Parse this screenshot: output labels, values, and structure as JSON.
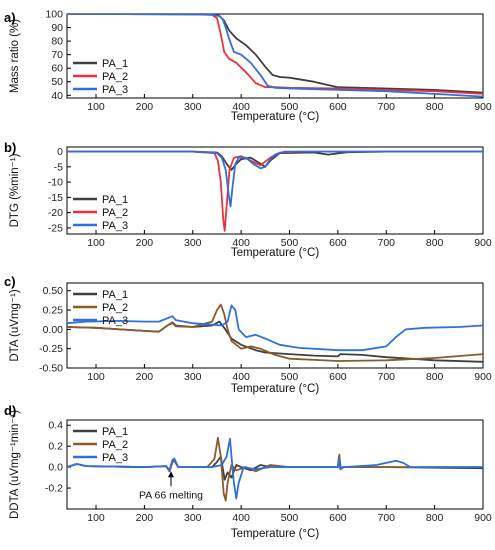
{
  "colors": {
    "PA_1": "#3f3f3f",
    "PA_2_red": "#e8333c",
    "PA_2_brown": "#8c5a2b",
    "PA_3": "#2f6fdf"
  },
  "chart_data": [
    {
      "type": "line",
      "panel": "a)",
      "xlabel": "Temperature (°C)",
      "ylabel": "Mass ratio (%)",
      "xlim": [
        40,
        900
      ],
      "ylim": [
        38,
        100
      ],
      "xticks": [
        100,
        200,
        300,
        400,
        500,
        600,
        700,
        800,
        900
      ],
      "yticks": [
        40,
        50,
        60,
        70,
        80,
        90,
        100
      ],
      "legend": "bottom-left",
      "series": [
        {
          "name": "PA_1",
          "color": "#3f3f3f",
          "x": [
            40,
            300,
            340,
            355,
            365,
            375,
            390,
            410,
            430,
            450,
            465,
            480,
            500,
            550,
            600,
            700,
            800,
            900
          ],
          "y": [
            100,
            99.8,
            99.5,
            98.5,
            95,
            88,
            82,
            77,
            70,
            61,
            55,
            53.5,
            53,
            50,
            46,
            45,
            44,
            42
          ]
        },
        {
          "name": "PA_2",
          "color": "#e8333c",
          "x": [
            40,
            300,
            340,
            350,
            358,
            365,
            375,
            390,
            410,
            430,
            450,
            470,
            500,
            600,
            700,
            800,
            900
          ],
          "y": [
            100,
            99.8,
            99.3,
            97,
            85,
            72,
            67,
            64,
            57,
            49,
            46,
            46,
            45.5,
            45,
            44,
            43,
            41
          ]
        },
        {
          "name": "PA_3",
          "color": "#2f6fdf",
          "x": [
            40,
            300,
            340,
            355,
            362,
            368,
            375,
            385,
            400,
            420,
            440,
            455,
            470,
            500,
            600,
            700,
            800,
            900
          ],
          "y": [
            100,
            99.8,
            99.5,
            98.8,
            96,
            90,
            82,
            72,
            70,
            64,
            55,
            47,
            45.5,
            45,
            44,
            43,
            41,
            39
          ]
        }
      ]
    },
    {
      "type": "line",
      "panel": "b)",
      "xlabel": "Temperature (°C)",
      "ylabel": "DTG (%min⁻¹)",
      "xlim": [
        40,
        900
      ],
      "ylim": [
        -27,
        1.5
      ],
      "xticks": [
        100,
        200,
        300,
        400,
        500,
        600,
        700,
        800,
        900
      ],
      "yticks": [
        -25,
        -20,
        -15,
        -10,
        -5,
        0
      ],
      "legend": "bottom-left",
      "series": [
        {
          "name": "PA_1",
          "color": "#3f3f3f",
          "x": [
            40,
            300,
            350,
            360,
            370,
            380,
            390,
            400,
            420,
            440,
            450,
            460,
            480,
            550,
            580,
            600,
            620,
            700,
            900
          ],
          "y": [
            0,
            0,
            -0.3,
            -1.5,
            -4,
            -6,
            -4,
            -2.5,
            -2,
            -4,
            -5,
            -3,
            -0.5,
            -0.3,
            -1,
            -0.6,
            -0.2,
            0,
            0
          ]
        },
        {
          "name": "PA_2",
          "color": "#e8333c",
          "x": [
            40,
            300,
            345,
            352,
            358,
            363,
            366,
            370,
            376,
            385,
            400,
            420,
            440,
            460,
            480,
            520,
            900
          ],
          "y": [
            0,
            0,
            -0.5,
            -3,
            -10,
            -22,
            -26,
            -18,
            -6,
            -2,
            -1.5,
            -3,
            -4.5,
            -2,
            -0.3,
            0,
            0
          ]
        },
        {
          "name": "PA_3",
          "color": "#2f6fdf",
          "x": [
            40,
            300,
            350,
            360,
            368,
            374,
            378,
            382,
            388,
            395,
            410,
            425,
            440,
            450,
            458,
            470,
            490,
            900
          ],
          "y": [
            0,
            0,
            -0.5,
            -2,
            -6,
            -14,
            -18,
            -12,
            -4,
            -2,
            -2,
            -4,
            -5.5,
            -5,
            -3,
            -1,
            0,
            0
          ]
        }
      ]
    },
    {
      "type": "line",
      "panel": "c)",
      "xlabel": "Temperature (°C)",
      "ylabel": "DTA (uVmg⁻¹)",
      "xlim": [
        40,
        900
      ],
      "ylim": [
        -0.5,
        0.6
      ],
      "xticks": [
        100,
        200,
        300,
        400,
        500,
        600,
        700,
        800,
        900
      ],
      "yticks": [
        -0.5,
        -0.25,
        0.0,
        0.25,
        0.5
      ],
      "legend": "top-left",
      "series": [
        {
          "name": "PA_1",
          "color": "#3f3f3f",
          "x": [
            40,
            100,
            150,
            200,
            230,
            250,
            258,
            265,
            300,
            340,
            355,
            365,
            380,
            400,
            430,
            450,
            500,
            550,
            600,
            605,
            650,
            700,
            750,
            800,
            900
          ],
          "y": [
            0.03,
            0.02,
            0.0,
            -0.02,
            -0.03,
            0.06,
            0.09,
            0.05,
            0.03,
            0.05,
            0.1,
            0.02,
            -0.12,
            -0.2,
            -0.27,
            -0.3,
            -0.32,
            -0.34,
            -0.35,
            -0.32,
            -0.33,
            -0.36,
            -0.38,
            -0.4,
            -0.42
          ]
        },
        {
          "name": "PA_2",
          "color": "#8c5a2b",
          "x": [
            40,
            100,
            150,
            200,
            230,
            250,
            258,
            265,
            300,
            340,
            350,
            358,
            365,
            372,
            380,
            400,
            420,
            440,
            470,
            500,
            600,
            700,
            800,
            900
          ],
          "y": [
            0.03,
            0.02,
            0.0,
            -0.02,
            -0.03,
            0.06,
            0.08,
            0.04,
            0.03,
            0.1,
            0.25,
            0.32,
            0.2,
            0.0,
            -0.15,
            -0.25,
            -0.22,
            -0.25,
            -0.33,
            -0.38,
            -0.41,
            -0.4,
            -0.37,
            -0.32
          ]
        },
        {
          "name": "PA_3",
          "color": "#2f6fdf",
          "x": [
            40,
            80,
            150,
            200,
            230,
            250,
            258,
            265,
            300,
            340,
            360,
            372,
            380,
            388,
            395,
            410,
            430,
            450,
            480,
            520,
            600,
            650,
            700,
            720,
            740,
            780,
            850,
            900
          ],
          "y": [
            0.08,
            0.1,
            0.11,
            0.1,
            0.1,
            0.15,
            0.17,
            0.12,
            0.08,
            0.06,
            0.05,
            0.1,
            0.31,
            0.25,
            0.0,
            -0.1,
            -0.07,
            -0.12,
            -0.2,
            -0.24,
            -0.27,
            -0.27,
            -0.22,
            -0.1,
            0.0,
            0.02,
            0.03,
            0.05
          ]
        }
      ]
    },
    {
      "type": "line",
      "panel": "d)",
      "xlabel": "Temperature (°C)",
      "ylabel": "DDTA (uVmg⁻¹min⁻¹)",
      "xlim": [
        40,
        900
      ],
      "ylim": [
        -0.4,
        0.45
      ],
      "xticks": [
        100,
        200,
        300,
        400,
        500,
        600,
        700,
        800,
        900
      ],
      "yticks": [
        -0.2,
        0.0,
        0.2,
        0.4
      ],
      "legend": "top-left",
      "annotation": {
        "text": "PA 66 melting",
        "x": 255,
        "y": -0.03
      },
      "series": [
        {
          "name": "PA_1",
          "color": "#3f3f3f",
          "x": [
            40,
            60,
            80,
            200,
            245,
            252,
            258,
            262,
            270,
            340,
            350,
            358,
            366,
            372,
            380,
            390,
            400,
            420,
            440,
            460,
            500,
            600,
            602,
            605,
            610,
            700,
            900
          ],
          "y": [
            0.0,
            0.03,
            0.01,
            0.0,
            0.01,
            -0.04,
            0.05,
            0.06,
            0.0,
            0.0,
            0.05,
            0.1,
            -0.12,
            -0.05,
            -0.1,
            0.02,
            0.0,
            -0.03,
            0.02,
            0.0,
            0.0,
            0.0,
            0.1,
            -0.02,
            0.0,
            0.0,
            -0.01
          ]
        },
        {
          "name": "PA_2",
          "color": "#8c5a2b",
          "x": [
            40,
            60,
            80,
            200,
            245,
            252,
            258,
            262,
            270,
            330,
            345,
            352,
            358,
            364,
            368,
            372,
            380,
            390,
            410,
            430,
            460,
            500,
            600,
            603,
            606,
            612,
            700,
            900
          ],
          "y": [
            0.0,
            0.03,
            0.01,
            0.0,
            0.01,
            -0.04,
            0.05,
            0.06,
            0.0,
            0.0,
            0.08,
            0.28,
            0.1,
            -0.25,
            -0.32,
            -0.15,
            0.02,
            -0.03,
            0.0,
            -0.04,
            0.02,
            0.0,
            0.0,
            0.12,
            -0.02,
            0.0,
            0.0,
            0.0
          ]
        },
        {
          "name": "PA_3",
          "color": "#2f6fdf",
          "x": [
            40,
            60,
            80,
            200,
            245,
            252,
            258,
            262,
            270,
            340,
            360,
            370,
            377,
            380,
            385,
            390,
            395,
            405,
            430,
            460,
            500,
            600,
            603,
            606,
            612,
            680,
            700,
            720,
            735,
            750,
            900
          ],
          "y": [
            0.0,
            0.03,
            0.01,
            0.0,
            0.01,
            -0.03,
            0.07,
            0.08,
            0.0,
            0.0,
            0.02,
            0.1,
            0.27,
            0.1,
            -0.15,
            -0.3,
            -0.15,
            0.0,
            -0.02,
            0.0,
            0.0,
            0.0,
            0.08,
            -0.02,
            0.0,
            0.02,
            0.04,
            0.06,
            0.04,
            0.0,
            0.0
          ]
        }
      ]
    }
  ]
}
